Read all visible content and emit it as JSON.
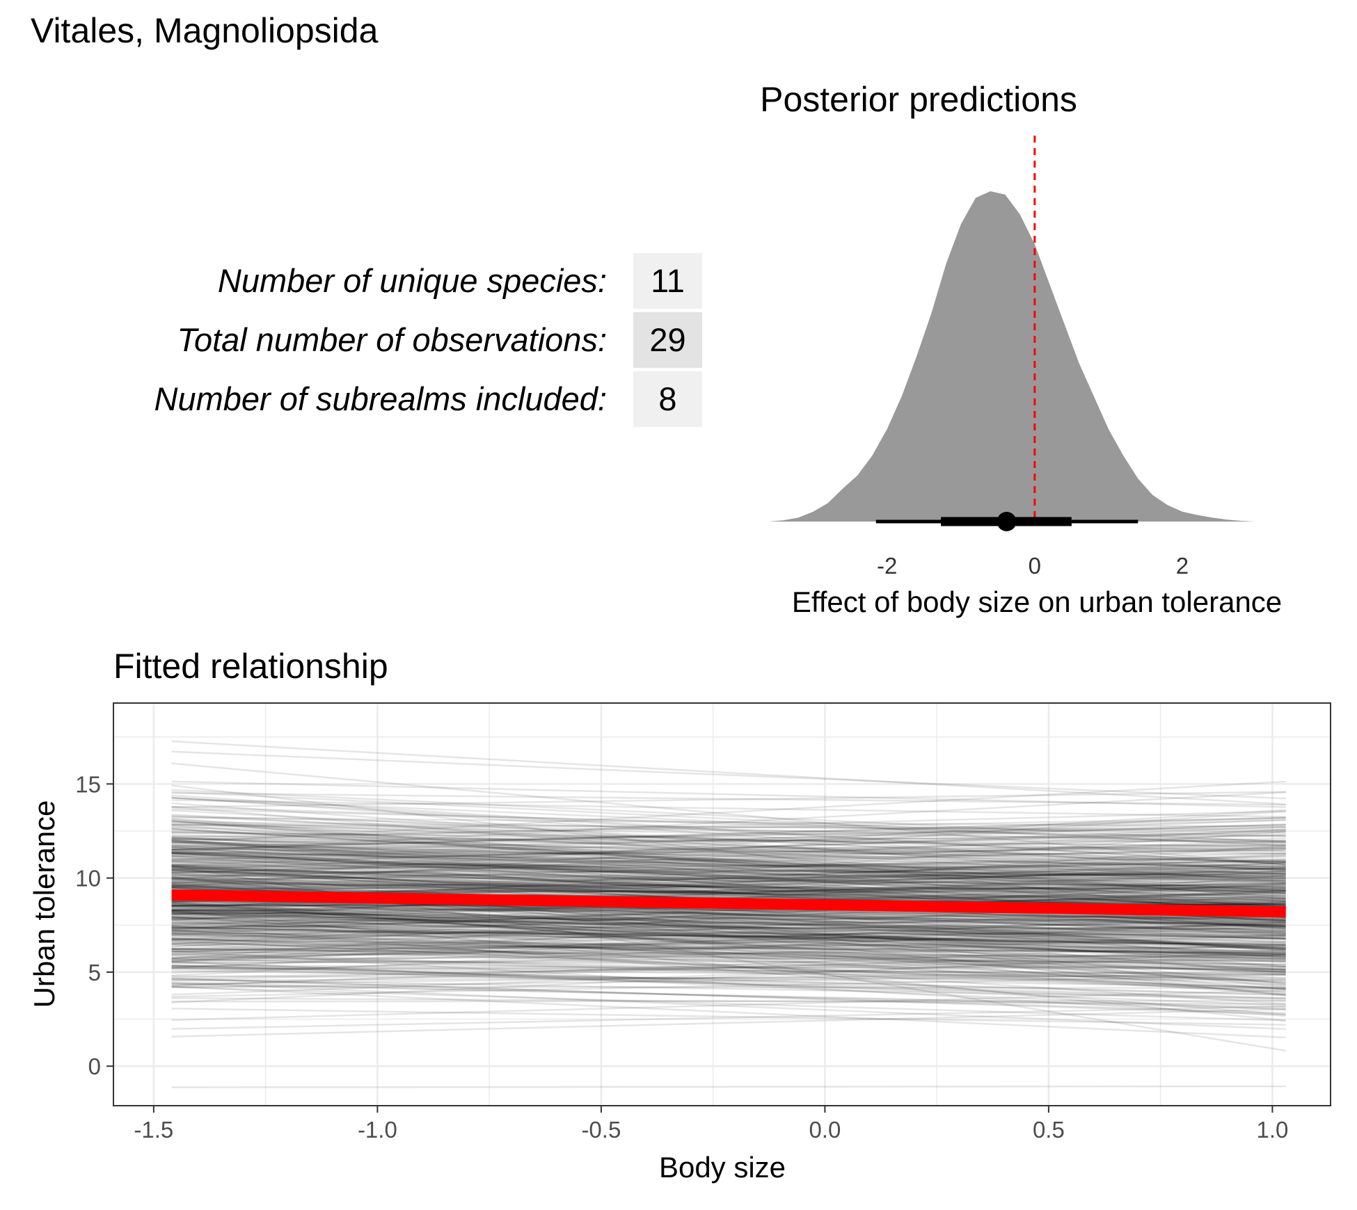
{
  "figure_title": "Vitales, Magnoliopsida",
  "stats_table": [
    {
      "label": "Number of unique species:",
      "value": "11"
    },
    {
      "label": "Total number of observations:",
      "value": "29"
    },
    {
      "label": "Number of subrealms included:",
      "value": "8"
    }
  ],
  "colors": {
    "density_fill": "#999999",
    "reference_line": "#ff0000",
    "fit_line": "#ff0000",
    "posterior_lines": "#000000",
    "panel_border": "#333333",
    "grid": "#ebebeb",
    "table_cell_light": "#f0f0f0",
    "table_cell_dark": "#e3e3e3"
  },
  "chart_data": [
    {
      "type": "area",
      "title": "Posterior predictions",
      "xlabel": "Effect of body size on urban tolerance",
      "ylabel": "",
      "xlim": [
        -3.6,
        3.0
      ],
      "x_ticks": [
        -2,
        0,
        2
      ],
      "x_tick_labels": [
        "-2",
        "0",
        "2"
      ],
      "grid": false,
      "density": {
        "x": [
          -3.6,
          -3.4,
          -3.2,
          -3.0,
          -2.8,
          -2.6,
          -2.4,
          -2.2,
          -2.0,
          -1.8,
          -1.6,
          -1.4,
          -1.2,
          -1.0,
          -0.8,
          -0.6,
          -0.4,
          -0.2,
          0.0,
          0.2,
          0.4,
          0.6,
          0.8,
          1.0,
          1.2,
          1.4,
          1.6,
          1.8,
          2.0,
          2.2,
          2.4,
          2.6,
          2.8,
          3.0
        ],
        "y": [
          0.0,
          0.004,
          0.012,
          0.03,
          0.056,
          0.1,
          0.14,
          0.2,
          0.28,
          0.38,
          0.5,
          0.63,
          0.78,
          0.9,
          0.98,
          1.0,
          0.99,
          0.93,
          0.84,
          0.72,
          0.6,
          0.48,
          0.38,
          0.28,
          0.2,
          0.13,
          0.08,
          0.05,
          0.03,
          0.02,
          0.012,
          0.006,
          0.002,
          0.0
        ]
      },
      "point_estimate": -0.38,
      "interval_66": [
        -1.27,
        0.5
      ],
      "interval_95": [
        -2.15,
        1.4
      ],
      "reference_line_x": 0
    },
    {
      "type": "line",
      "title": "Fitted relationship",
      "xlabel": "Body size",
      "ylabel": "Urban tolerance",
      "xlim": [
        -1.59,
        1.13
      ],
      "ylim": [
        -2.1,
        19.3
      ],
      "x_ticks": [
        -1.5,
        -1.0,
        -0.5,
        0.0,
        0.5,
        1.0
      ],
      "x_tick_labels": [
        "-1.5",
        "-1.0",
        "-0.5",
        "0.0",
        "0.5",
        "1.0"
      ],
      "y_ticks": [
        0,
        5,
        10,
        15
      ],
      "y_tick_labels": [
        "0",
        "5",
        "10",
        "15"
      ],
      "grid": true,
      "x_range": [
        -1.46,
        1.03
      ],
      "mean_fit": {
        "x": [
          -1.46,
          1.03
        ],
        "y": [
          9.1,
          8.2
        ]
      },
      "posterior_draws": {
        "count": 500,
        "intercept_mean": 8.6,
        "intercept_sd": 2.4,
        "slope_mean": -0.38,
        "slope_sd": 0.85
      }
    }
  ]
}
